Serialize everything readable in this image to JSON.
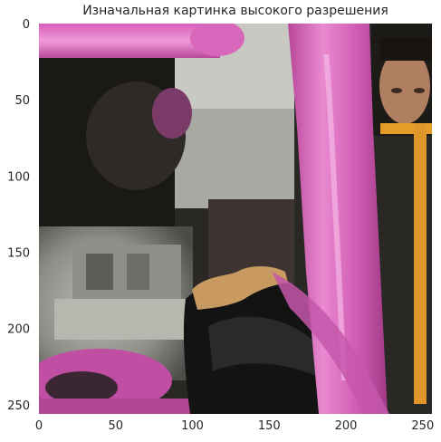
{
  "title": "Изначальная картинка высокого разрешения",
  "image": {
    "description_role": "photo",
    "x_ticks": [
      "0",
      "50",
      "100",
      "150",
      "200",
      "250"
    ],
    "y_ticks": [
      "0",
      "50",
      "100",
      "150",
      "200",
      "250"
    ],
    "x_tick_values": [
      0,
      50,
      100,
      150,
      200,
      250
    ],
    "y_tick_values": [
      0,
      50,
      100,
      150,
      200,
      250
    ],
    "extent": [
      0,
      256
    ],
    "colors": {
      "magenta": "#d05bb2",
      "pink_bright": "#e98ad1",
      "dark": "#1b1a17",
      "grey": "#9a9a93",
      "light_grey": "#c8c8c2",
      "orange": "#e59d2a",
      "skin": "#b07f61",
      "tan": "#c89a62"
    }
  }
}
